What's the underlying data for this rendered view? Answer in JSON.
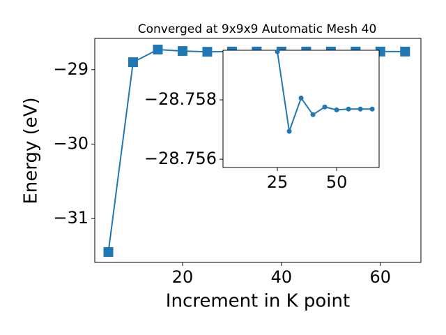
{
  "chart_data": [
    {
      "type": "line",
      "title": "Converged at 9x9x9 Automatic Mesh 40",
      "x_label": "Increment in K point",
      "y_label": "Energy (eV)",
      "x": [
        5,
        10,
        15,
        20,
        25,
        30,
        35,
        40,
        45,
        50,
        55,
        60,
        65
      ],
      "series": [
        {
          "name": "Energy",
          "color": "#1f77b4",
          "marker": "square",
          "values": [
            -31.45,
            -28.9,
            -28.73,
            -28.75,
            -28.76,
            -28.757,
            -28.757,
            -28.757,
            -28.757,
            -28.757,
            -28.757,
            -28.757,
            -28.757
          ]
        }
      ],
      "xlim": [
        2.25,
        68.2
      ],
      "ylim": [
        -31.59,
        -28.58
      ],
      "xticks": [
        20,
        40,
        60
      ],
      "yticks": [
        {
          "value": -31,
          "label": "−31"
        },
        {
          "value": -30,
          "label": "−30"
        },
        {
          "value": -29,
          "label": "−29"
        }
      ]
    },
    {
      "type": "line",
      "x": [
        25,
        30,
        35,
        40,
        45,
        50,
        55,
        60,
        65
      ],
      "series": [
        {
          "name": "Energy",
          "color": "#1f77b4",
          "marker": "circle",
          "values": [
            -28.75962,
            -28.75694,
            -28.75806,
            -28.7575,
            -28.75776,
            -28.75766,
            -28.75769,
            -28.75769,
            -28.75769
          ]
        }
      ],
      "xlim": [
        2.06,
        67.9
      ],
      "ylim": [
        -28.75572,
        -28.75967
      ],
      "xticks": [
        25,
        50
      ],
      "yticks": [
        {
          "value": -28.758,
          "label": "−28.758"
        },
        {
          "value": -28.756,
          "label": "−28.756"
        }
      ]
    }
  ]
}
